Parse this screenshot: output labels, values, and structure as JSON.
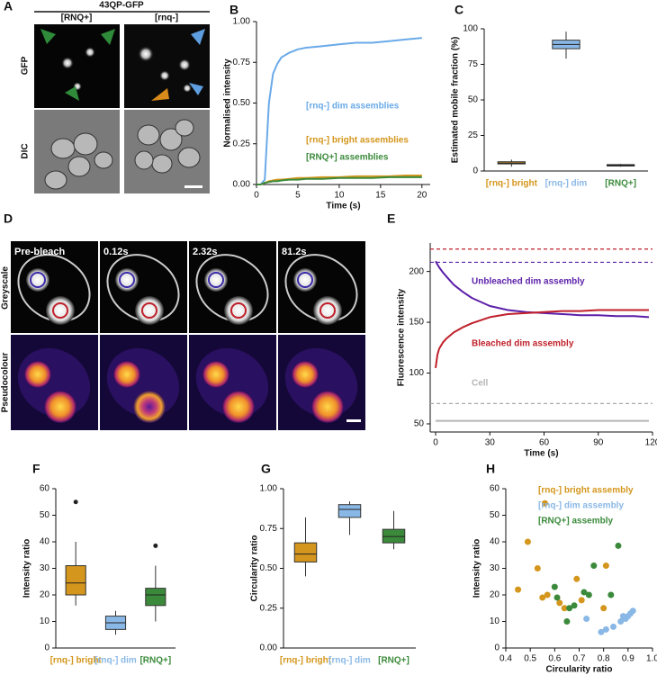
{
  "panel_labels": [
    "A",
    "B",
    "C",
    "D",
    "E",
    "F",
    "G",
    "H"
  ],
  "panel_a": {
    "title": "43QP-GFP",
    "columns": [
      "[RNQ+]",
      "[rnq-]"
    ],
    "rows": [
      "GFP",
      "DIC"
    ]
  },
  "panel_d": {
    "timepoints": [
      "Pre-bleach",
      "0.12s",
      "2.32s",
      "81.2s"
    ],
    "rows": [
      "Greyscale",
      "Pseudocolour"
    ]
  },
  "chart_data": [
    {
      "type": "line",
      "xlabel": "Time (s)",
      "ylabel": "Normalised intensity",
      "x": [
        0,
        0.5,
        1,
        1.5,
        2,
        2.5,
        3,
        4,
        5,
        6,
        8,
        10,
        12,
        14,
        16,
        18,
        20
      ],
      "series": [
        {
          "name": "[rnq-] dim assemblies",
          "color": "#6aaae8",
          "values": [
            0,
            0,
            0.03,
            0.5,
            0.68,
            0.74,
            0.78,
            0.81,
            0.83,
            0.84,
            0.85,
            0.86,
            0.87,
            0.87,
            0.88,
            0.89,
            0.9
          ]
        },
        {
          "name": "[rnq-] bright assemblies",
          "color": "#d4961c",
          "values": [
            0,
            0,
            0.01,
            0.02,
            0.025,
            0.03,
            0.03,
            0.035,
            0.04,
            0.04,
            0.045,
            0.045,
            0.05,
            0.05,
            0.05,
            0.055,
            0.055
          ]
        },
        {
          "name": "[RNQ+] assemblies",
          "color": "#3b8a3b",
          "values": [
            0,
            0,
            0.01,
            0.015,
            0.02,
            0.02,
            0.025,
            0.03,
            0.03,
            0.035,
            0.035,
            0.04,
            0.04,
            0.04,
            0.045,
            0.045,
            0.045
          ]
        }
      ],
      "xlim": [
        0,
        21
      ],
      "xticks": [
        0,
        5,
        10,
        15,
        20
      ],
      "ylim": [
        0,
        1
      ],
      "yticks": [
        {
          "value": 0,
          "label": "0.00"
        },
        {
          "value": 0.25,
          "label": "0.25"
        },
        {
          "value": 0.5,
          "label": "0.50"
        },
        {
          "value": 0.75,
          "label": "0.75"
        },
        {
          "value": 1,
          "label": "1.00"
        }
      ]
    },
    {
      "type": "box",
      "ylabel": "Estimated mobile fraction (%)",
      "categories": [
        "[rnq-] bright",
        "[rnq-] dim",
        "[RNQ+]"
      ],
      "colors": [
        "#d4961c",
        "#8ab8e6",
        "#3b8a3b"
      ],
      "boxes": [
        {
          "min": 3,
          "q1": 5,
          "median": 5.5,
          "q3": 6.5,
          "max": 8
        },
        {
          "min": 79,
          "q1": 86,
          "median": 89,
          "q3": 92,
          "max": 98
        },
        {
          "min": 3,
          "q1": 3.5,
          "median": 4,
          "q3": 4.5,
          "max": 5
        }
      ],
      "ylim": [
        0,
        100
      ],
      "yticks": [
        0,
        25,
        50,
        75,
        100
      ]
    },
    {
      "type": "line",
      "xlabel": "Time (s)",
      "ylabel": "Fluorescence intensity",
      "x": [
        0,
        1,
        2,
        4,
        6,
        8,
        10,
        15,
        20,
        25,
        30,
        40,
        50,
        60,
        70,
        80,
        90,
        100,
        110,
        118
      ],
      "series": [
        {
          "name": "Unbleached dim assembly",
          "color": "#5b1fa8",
          "values": [
            210,
            207,
            204,
            199,
            195,
            191,
            187,
            180,
            174,
            170,
            166,
            162,
            160,
            159,
            158,
            157,
            157,
            156,
            156,
            155
          ]
        },
        {
          "name": "Bleached dim assembly",
          "color": "#c0202a",
          "values": [
            105,
            118,
            124,
            130,
            134,
            137,
            140,
            145,
            149,
            152,
            155,
            158,
            159,
            160,
            161,
            161,
            162,
            162,
            162,
            162
          ]
        },
        {
          "name": "Cell",
          "color": "#b5b5b5",
          "values": [
            53,
            53,
            53,
            53,
            53,
            53,
            53,
            53,
            53,
            53,
            53,
            53,
            53,
            53,
            53,
            53,
            53,
            53,
            53,
            53
          ]
        }
      ],
      "reference_lines": [
        {
          "value": 222,
          "color": "#c0202a"
        },
        {
          "value": 209,
          "color": "#5b1fa8"
        },
        {
          "value": 70,
          "color": "#aaaaaa"
        }
      ],
      "xlim": [
        -3,
        120
      ],
      "xticks": [
        0,
        30,
        60,
        90,
        120
      ],
      "ylim": [
        42,
        228
      ],
      "yticks": [
        50,
        100,
        150,
        200
      ]
    },
    {
      "type": "box",
      "ylabel": "Intensity ratio",
      "categories": [
        "[rnq-] bright",
        "[rnq-] dim",
        "[RNQ+]"
      ],
      "colors": [
        "#d4961c",
        "#8ab8e6",
        "#3b8a3b"
      ],
      "boxes": [
        {
          "min": 16,
          "q1": 20,
          "median": 24.5,
          "q3": 31,
          "max": 40,
          "outliers": [
            55
          ]
        },
        {
          "min": 5,
          "q1": 7,
          "median": 9.5,
          "q3": 12,
          "max": 14
        },
        {
          "min": 10,
          "q1": 16,
          "median": 20,
          "q3": 22.5,
          "max": 31,
          "outliers": [
            38.5
          ]
        }
      ],
      "ylim": [
        0,
        60
      ],
      "yticks": [
        0,
        10,
        20,
        30,
        40,
        50,
        60
      ]
    },
    {
      "type": "box",
      "ylabel": "Circularity ratio",
      "categories": [
        "[rnq-] bright",
        "[rnq-] dim",
        "[RNQ+]"
      ],
      "colors": [
        "#d4961c",
        "#8ab8e6",
        "#3b8a3b"
      ],
      "boxes": [
        {
          "min": 0.45,
          "q1": 0.54,
          "median": 0.59,
          "q3": 0.66,
          "max": 0.82
        },
        {
          "min": 0.71,
          "q1": 0.82,
          "median": 0.87,
          "q3": 0.9,
          "max": 0.92
        },
        {
          "min": 0.62,
          "q1": 0.66,
          "median": 0.7,
          "q3": 0.745,
          "max": 0.86
        }
      ],
      "ylim": [
        0,
        1
      ],
      "yticks": [
        {
          "value": 0,
          "label": "0.00"
        },
        {
          "value": 0.25,
          "label": "0.25"
        },
        {
          "value": 0.5,
          "label": "0.50"
        },
        {
          "value": 0.75,
          "label": "0.75"
        },
        {
          "value": 1,
          "label": "1.00"
        }
      ]
    },
    {
      "type": "scatter",
      "xlabel": "Circularity ratio",
      "ylabel": "Intensity ratio",
      "series": [
        {
          "name": "[rnq-] bright assembly",
          "color": "#d4961c",
          "x": [
            0.45,
            0.49,
            0.53,
            0.55,
            0.56,
            0.57,
            0.62,
            0.64,
            0.69,
            0.71,
            0.8,
            0.81
          ],
          "values": [
            22,
            40,
            30,
            19,
            54.5,
            20,
            17,
            15,
            26,
            18,
            15,
            31
          ]
        },
        {
          "name": "[rnq-] dim assembly",
          "color": "#8ab8e6",
          "x": [
            0.73,
            0.79,
            0.81,
            0.84,
            0.87,
            0.88,
            0.89,
            0.9,
            0.91,
            0.92
          ],
          "values": [
            11,
            6,
            7,
            8,
            10,
            12,
            11,
            12,
            13,
            14
          ]
        },
        {
          "name": "[RNQ+] assembly",
          "color": "#3b8a3b",
          "x": [
            0.6,
            0.61,
            0.65,
            0.66,
            0.68,
            0.72,
            0.74,
            0.76,
            0.83,
            0.86
          ],
          "values": [
            23,
            19,
            10,
            15,
            16,
            21,
            20,
            31,
            20,
            38.5
          ]
        }
      ],
      "xlim": [
        0.4,
        1
      ],
      "xticks": [
        0.4,
        0.5,
        0.6,
        0.7,
        0.8,
        0.9,
        {
          "value": 1,
          "label": "1.0"
        }
      ],
      "ylim": [
        0,
        60
      ],
      "yticks": [
        0,
        10,
        20,
        30,
        40,
        50,
        60
      ]
    }
  ]
}
